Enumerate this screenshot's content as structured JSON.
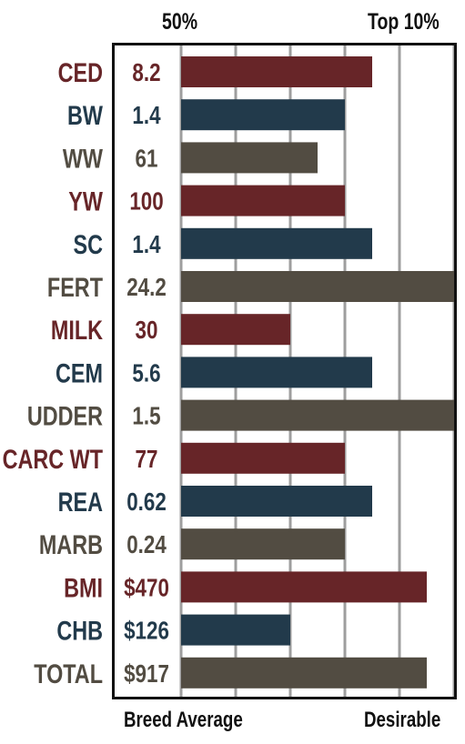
{
  "header": {
    "left_label": "50%",
    "right_label": "Top 10%"
  },
  "footer": {
    "left_label": "Breed Average",
    "right_label": "Desirable"
  },
  "colors": {
    "red": "#672528",
    "navy": "#223a4b",
    "gray": "#524c42",
    "grid": "#9e9e9e",
    "frame": "#111111"
  },
  "chart_data": {
    "type": "bar",
    "orientation": "horizontal",
    "categories": [
      "CED",
      "BW",
      "WW",
      "YW",
      "SC",
      "FERT",
      "MILK",
      "CEM",
      "UDDER",
      "CARC WT",
      "REA",
      "MARB",
      "BMI",
      "CHB",
      "TOTAL"
    ],
    "value_labels": [
      "8.2",
      "1.4",
      "61",
      "100",
      "1.4",
      "24.2",
      "30",
      "5.6",
      "1.5",
      "77",
      "0.62",
      "0.24",
      "$470",
      "$126",
      "$917"
    ],
    "bar_levels": [
      3.5,
      3,
      2.5,
      3,
      3.5,
      5,
      2,
      3.5,
      5,
      3,
      3.5,
      3,
      4.5,
      2,
      4.5
    ],
    "bar_colors": [
      "red",
      "navy",
      "gray",
      "red",
      "navy",
      "gray",
      "red",
      "navy",
      "gray",
      "red",
      "navy",
      "gray",
      "red",
      "navy",
      "gray"
    ],
    "xlim": [
      0,
      5
    ],
    "grid": true,
    "ticks": [
      0,
      1,
      2,
      3,
      4,
      5
    ]
  }
}
